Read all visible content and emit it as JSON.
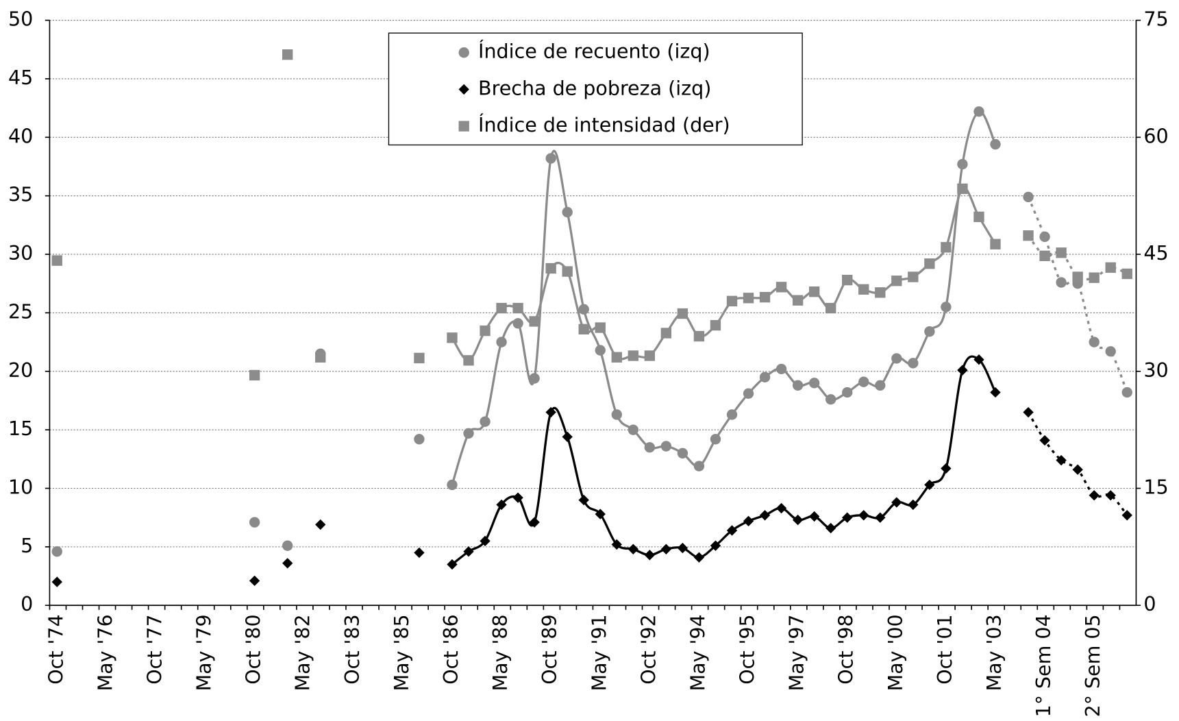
{
  "chart_data": {
    "type": "line",
    "categories": [
      "Oct '74",
      null,
      null,
      "May '76",
      null,
      null,
      "Oct '77",
      null,
      null,
      "May '79",
      null,
      null,
      "Oct '80",
      null,
      null,
      "May '82",
      null,
      null,
      "Oct '83",
      null,
      null,
      "May '85",
      null,
      null,
      "Oct '86",
      null,
      null,
      "May '88",
      null,
      null,
      "Oct '89",
      null,
      null,
      "May '91",
      null,
      null,
      "Oct '92",
      null,
      null,
      "May '94",
      null,
      null,
      "Oct '95",
      null,
      null,
      "May '97",
      null,
      null,
      "Oct '98",
      null,
      null,
      "May '00",
      null,
      null,
      "Oct '01",
      null,
      null,
      "May '03",
      null,
      null,
      "1° Sem 04",
      null,
      null,
      "2° Sem 05",
      null,
      null
    ],
    "series": [
      {
        "name": "Índice de recuento (izq)",
        "color": "#8a8a8a",
        "marker": "circle",
        "values": [
          4.6,
          null,
          null,
          null,
          null,
          null,
          null,
          null,
          null,
          null,
          null,
          null,
          7.1,
          null,
          5.1,
          null,
          21.5,
          null,
          null,
          null,
          null,
          null,
          14.2,
          null,
          10.3,
          14.7,
          15.7,
          22.5,
          24.1,
          19.4,
          38.2,
          33.6,
          25.3,
          21.8,
          16.3,
          15.0,
          13.5,
          13.6,
          13.0,
          11.9,
          14.2,
          16.3,
          18.1,
          19.5,
          20.2,
          18.8,
          19.0,
          17.6,
          18.2,
          19.1,
          18.8,
          21.1,
          20.7,
          23.4,
          25.5,
          37.7,
          42.2,
          39.4,
          null,
          34.9,
          31.5,
          27.6,
          27.5,
          22.5,
          21.7,
          18.2
        ]
      },
      {
        "name": "Brecha de pobreza (izq)",
        "color": "#000000",
        "marker": "diamond",
        "values": [
          2.0,
          null,
          null,
          null,
          null,
          null,
          null,
          null,
          null,
          null,
          null,
          null,
          2.1,
          null,
          3.6,
          null,
          6.9,
          null,
          null,
          null,
          null,
          null,
          4.5,
          null,
          3.5,
          4.6,
          5.5,
          8.6,
          9.2,
          7.1,
          16.5,
          14.4,
          9.0,
          7.8,
          5.2,
          4.8,
          4.3,
          4.8,
          4.9,
          4.1,
          5.1,
          6.4,
          7.2,
          7.7,
          8.3,
          7.3,
          7.6,
          6.6,
          7.5,
          7.7,
          7.5,
          8.8,
          8.6,
          10.3,
          11.7,
          20.1,
          21.0,
          18.2,
          null,
          16.5,
          14.1,
          12.4,
          11.6,
          9.4,
          9.4,
          7.7
        ]
      },
      {
        "name": "Índice de intensidad (der)",
        "color": "#8c8c8c",
        "marker": "square",
        "axis": "y2",
        "values": [
          44.2,
          null,
          null,
          null,
          null,
          null,
          null,
          null,
          null,
          null,
          null,
          null,
          29.5,
          null,
          70.6,
          null,
          31.8,
          null,
          null,
          null,
          null,
          null,
          31.7,
          null,
          34.3,
          31.4,
          35.2,
          38.1,
          38.1,
          36.4,
          43.2,
          42.8,
          35.4,
          35.6,
          31.8,
          32.0,
          32.0,
          34.9,
          37.4,
          34.5,
          35.9,
          39.0,
          39.4,
          39.5,
          40.8,
          39.1,
          40.2,
          38.1,
          41.7,
          40.5,
          40.1,
          41.6,
          42.1,
          43.8,
          45.9,
          53.4,
          49.8,
          46.3,
          null,
          47.4,
          44.8,
          45.2,
          42.1,
          42.0,
          43.3,
          42.5
        ]
      }
    ],
    "ylim": [
      0,
      50
    ],
    "yticks": [
      0,
      5,
      10,
      15,
      20,
      25,
      30,
      35,
      40,
      45,
      50
    ],
    "y2lim": [
      0,
      75
    ],
    "y2ticks": [
      0,
      15,
      30,
      45,
      60,
      75
    ],
    "grid": true,
    "legend": "top"
  }
}
